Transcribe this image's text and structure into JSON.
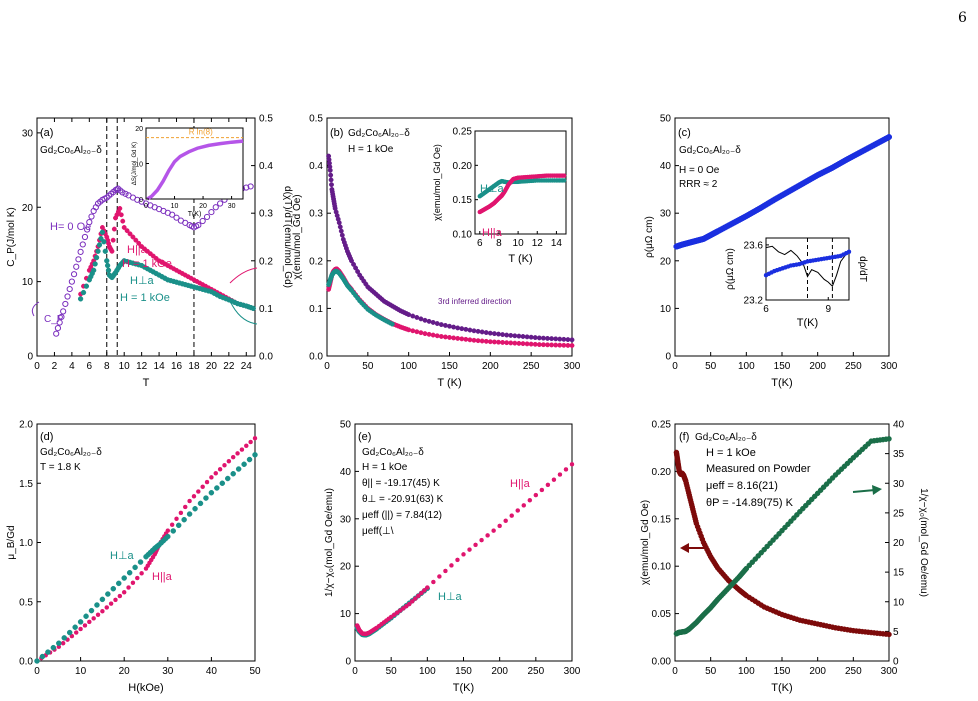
{
  "page_number": "6",
  "colors": {
    "pink": "#e0156e",
    "teal": "#1a9089",
    "purple": "#7b2fbe",
    "violet": "#b555e8",
    "darkpurple": "#641c89",
    "blue": "#1a2fe0",
    "darkred": "#7d0a0a",
    "darkgreen": "#1a6e48",
    "orange": "#f0a030"
  },
  "chart_data": [
    {
      "panel": "(a)",
      "type": "scatter",
      "annotations": [
        "Gd₂Co₆Al₂₀₋δ",
        "H= 0 Oe",
        "H||a",
        "H = 1 kOe",
        "H⊥a",
        "H = 1 kOe",
        "C_P"
      ],
      "xlabel": "T",
      "ylabel": "C_P(J/mol K)",
      "y2label": "d(χT)/dT(emu/mol_Gd)",
      "xlim": [
        0,
        25
      ],
      "ylim": [
        0,
        32
      ],
      "y2lim": [
        0,
        0.5
      ],
      "xticks": [
        "0",
        "2",
        "4",
        "6",
        "8",
        "10",
        "12",
        "14",
        "16",
        "18",
        "20",
        "22",
        "24"
      ],
      "yticks": [
        "0",
        "10",
        "20",
        "30"
      ],
      "y2ticks": [
        "0.0",
        "0.1",
        "0.2",
        "0.3",
        "0.4",
        "0.5"
      ],
      "dashed_lines_x": [
        8,
        9.2,
        18
      ],
      "series": [
        {
          "name": "H= 0 Oe",
          "axis": "left",
          "x": [
            2.2,
            2.6,
            3.0,
            3.5,
            4.0,
            4.5,
            5.0,
            5.5,
            6.0,
            6.5,
            7.0,
            7.5,
            8.0,
            8.5,
            9.0,
            9.3,
            9.8,
            10.5,
            11.5,
            12.5,
            13.5,
            14.5,
            15.5,
            16.5,
            17.5,
            18.0,
            18.5,
            19.5,
            20.5,
            21.5,
            22.5,
            23.5,
            24.5
          ],
          "y": [
            3,
            4.5,
            6,
            8,
            10,
            12,
            14,
            16,
            18,
            19.5,
            20.5,
            21,
            21.3,
            21.8,
            22.3,
            22.5,
            22,
            21.6,
            21,
            20.5,
            20,
            19.5,
            19,
            18.2,
            17.6,
            17.3,
            17.6,
            18.7,
            20,
            21,
            22,
            22.5,
            22.8
          ]
        },
        {
          "name": "H||a",
          "axis": "right",
          "x": [
            5,
            6,
            6.5,
            7,
            7.5,
            8,
            8.3,
            8.6,
            9,
            9.5,
            10,
            11,
            12,
            13,
            14,
            15,
            16,
            17,
            18,
            19,
            20,
            21,
            22,
            23,
            24,
            24.8
          ],
          "y": [
            0.13,
            0.18,
            0.2,
            0.23,
            0.27,
            0.25,
            0.23,
            0.22,
            0.29,
            0.31,
            0.27,
            0.25,
            0.23,
            0.215,
            0.2,
            0.19,
            0.18,
            0.17,
            0.16,
            0.15,
            0.14,
            0.13,
            0.12,
            0.11,
            0.105,
            0.1
          ]
        },
        {
          "name": "H⊥a",
          "axis": "right",
          "x": [
            5,
            6,
            6.5,
            7,
            7.5,
            8,
            8.3,
            8.6,
            9,
            9.5,
            10,
            11,
            12,
            13,
            14,
            15,
            16,
            17,
            18,
            19,
            20,
            21,
            22,
            23,
            24,
            24.8
          ],
          "y": [
            0.12,
            0.16,
            0.18,
            0.22,
            0.26,
            0.2,
            0.17,
            0.165,
            0.175,
            0.19,
            0.2,
            0.195,
            0.19,
            0.18,
            0.17,
            0.16,
            0.155,
            0.15,
            0.145,
            0.14,
            0.135,
            0.125,
            0.118,
            0.11,
            0.105,
            0.1
          ]
        }
      ],
      "inset": {
        "xlabel": "T(K)",
        "ylabel": "ΔS(J/mol_Gd K)",
        "label": "R ln(8)",
        "xlim": [
          0,
          34
        ],
        "ylim": [
          0,
          20
        ],
        "xticks": [
          "0",
          "10",
          "20",
          "30"
        ],
        "yticks": [
          "0",
          "10",
          "20"
        ],
        "rln8": 17.3,
        "x": [
          0.5,
          2,
          4,
          6,
          8,
          10,
          12,
          15,
          18,
          22,
          26,
          30,
          34
        ],
        "y": [
          0,
          0.8,
          2.5,
          5,
          8,
          10.5,
          12,
          13.3,
          14.3,
          15.1,
          15.6,
          16,
          16.3
        ]
      }
    },
    {
      "panel": "(b)",
      "type": "scatter",
      "annotations": [
        "Gd₂Co₆Al₂₀₋δ",
        "H = 1 kOe",
        "3rd inferred direction"
      ],
      "xlabel": "T (K)",
      "ylabel": "χ(emu/mol_Gd Oe)",
      "xlim": [
        0,
        300
      ],
      "ylim": [
        0,
        0.5
      ],
      "xticks": [
        "0",
        "50",
        "100",
        "150",
        "200",
        "250",
        "300"
      ],
      "yticks": [
        "0.0",
        "0.1",
        "0.2",
        "0.3",
        "0.4",
        "0.5"
      ],
      "series": [
        {
          "name": "3rd inferred direction",
          "x": [
            2,
            4,
            6,
            8,
            10,
            15,
            20,
            25,
            30,
            40,
            50,
            60,
            70,
            80,
            90,
            100,
            120,
            140,
            160,
            180,
            200,
            220,
            240,
            260,
            280,
            300
          ],
          "y": [
            0.42,
            0.39,
            0.35,
            0.33,
            0.31,
            0.28,
            0.245,
            0.22,
            0.2,
            0.17,
            0.145,
            0.13,
            0.115,
            0.105,
            0.095,
            0.087,
            0.075,
            0.066,
            0.059,
            0.053,
            0.048,
            0.044,
            0.041,
            0.038,
            0.036,
            0.034
          ]
        },
        {
          "name": "H||a",
          "x": [
            2,
            4,
            6,
            8,
            10,
            12,
            15,
            20,
            25,
            30,
            40,
            50,
            60,
            70,
            80,
            90,
            100,
            120,
            140,
            160,
            180,
            200,
            220,
            240,
            260,
            280,
            300
          ],
          "y": [
            0.14,
            0.155,
            0.17,
            0.178,
            0.182,
            0.183,
            0.178,
            0.165,
            0.15,
            0.14,
            0.118,
            0.1,
            0.087,
            0.077,
            0.068,
            0.061,
            0.055,
            0.047,
            0.041,
            0.037,
            0.033,
            0.03,
            0.028,
            0.026,
            0.024,
            0.023,
            0.022
          ]
        },
        {
          "name": "H⊥a",
          "x": [
            2,
            4,
            6,
            8,
            10,
            12,
            15,
            20,
            25,
            30,
            40,
            50,
            60,
            70,
            80
          ],
          "y": [
            0.15,
            0.16,
            0.17,
            0.175,
            0.178,
            0.178,
            0.174,
            0.162,
            0.148,
            0.138,
            0.116,
            0.098,
            0.086,
            0.076,
            0.067
          ]
        }
      ],
      "inset": {
        "xlabel": "T (K)",
        "ylabel": "χ(emu/mol_Gd Oe)",
        "xlim": [
          5.5,
          15
        ],
        "ylim": [
          0.1,
          0.25
        ],
        "xticks": [
          "6",
          "8",
          "10",
          "12",
          "14"
        ],
        "yticks": [
          "0.10",
          "0.15",
          "0.20",
          "0.25"
        ],
        "labels": [
          "H⊥a",
          "H||a"
        ],
        "series": [
          {
            "name": "H⊥a",
            "x": [
              6,
              6.5,
              7,
              7.5,
              8,
              8.3,
              8.6,
              9,
              9.5,
              10,
              11,
              12,
              13,
              14,
              14.8
            ],
            "y": [
              0.155,
              0.16,
              0.165,
              0.17,
              0.175,
              0.177,
              0.176,
              0.175,
              0.176,
              0.176,
              0.177,
              0.178,
              0.178,
              0.178,
              0.178
            ]
          },
          {
            "name": "H||a",
            "x": [
              6,
              6.5,
              7,
              7.5,
              8,
              8.3,
              8.6,
              9,
              9.5,
              10,
              11,
              12,
              13,
              14,
              14.8
            ],
            "y": [
              0.132,
              0.136,
              0.14,
              0.145,
              0.152,
              0.156,
              0.162,
              0.172,
              0.18,
              0.182,
              0.183,
              0.184,
              0.185,
              0.185,
              0.185
            ]
          }
        ]
      }
    },
    {
      "panel": "(c)",
      "type": "scatter",
      "annotations": [
        "Gd₂Co₆Al₂₀₋δ",
        "H = 0 Oe",
        "RRR ≈ 2"
      ],
      "xlabel": "T(K)",
      "ylabel": "ρ(μΩ cm)",
      "xlim": [
        0,
        300
      ],
      "ylim": [
        0,
        50
      ],
      "xticks": [
        "0",
        "50",
        "100",
        "150",
        "200",
        "250",
        "300"
      ],
      "yticks": [
        "0",
        "10",
        "20",
        "30",
        "40",
        "50"
      ],
      "series": [
        {
          "name": "ρ",
          "x": [
            2,
            10,
            20,
            30,
            40,
            50,
            60,
            80,
            100,
            120,
            140,
            160,
            180,
            200,
            220,
            240,
            260,
            280,
            300
          ],
          "y": [
            23,
            23.4,
            23.8,
            24.2,
            24.6,
            25.4,
            26.2,
            27.8,
            29.4,
            31.1,
            32.9,
            34.6,
            36.3,
            38,
            39.5,
            41.2,
            42.8,
            44.4,
            46
          ]
        }
      ],
      "inset": {
        "xlabel": "T(K)",
        "ylabel": "ρ(μΩ cm)",
        "y2label": "dρ/dT",
        "xlim": [
          6,
          10
        ],
        "ylim": [
          23.2,
          23.65
        ],
        "xticks": [
          "6",
          "9"
        ],
        "yticks": [
          "23.2",
          "23.6"
        ],
        "dashed_lines_x": [
          8,
          9.2
        ],
        "rho": {
          "x": [
            6,
            6.4,
            6.8,
            7.2,
            7.6,
            8,
            8.4,
            8.8,
            9.2,
            9.6,
            10
          ],
          "y": [
            23.38,
            23.41,
            23.43,
            23.45,
            23.46,
            23.48,
            23.49,
            23.5,
            23.51,
            23.52,
            23.55
          ]
        },
        "drho": {
          "x": [
            6,
            6.3,
            6.6,
            6.9,
            7.2,
            7.5,
            7.8,
            8,
            8.2,
            8.5,
            8.8,
            9.0,
            9.2,
            9.4,
            9.6,
            9.8,
            10
          ],
          "y": [
            23.58,
            23.59,
            23.55,
            23.53,
            23.56,
            23.52,
            23.46,
            23.37,
            23.42,
            23.4,
            23.35,
            23.33,
            23.3,
            23.38,
            23.48,
            23.52,
            23.56
          ]
        }
      }
    },
    {
      "panel": "(d)",
      "type": "scatter",
      "annotations": [
        "Gd₂Co₆Al₂₀₋δ",
        "T = 1.8 K",
        "H⊥a",
        "H||a"
      ],
      "xlabel": "H(kOe)",
      "ylabel": "μ_B/Gd",
      "xlim": [
        0,
        50
      ],
      "ylim": [
        0,
        2.0
      ],
      "xticks": [
        "0",
        "10",
        "20",
        "30",
        "40",
        "50"
      ],
      "yticks": [
        "0.0",
        "0.5",
        "1.0",
        "1.5",
        "2.0"
      ],
      "series": [
        {
          "name": "H⊥a",
          "x": [
            0,
            5,
            10,
            15,
            20,
            25,
            27,
            28,
            30,
            35,
            40,
            45,
            50
          ],
          "y": [
            0,
            0.15,
            0.33,
            0.52,
            0.7,
            0.88,
            0.95,
            0.98,
            1.05,
            1.24,
            1.42,
            1.58,
            1.74
          ]
        },
        {
          "name": "H||a",
          "x": [
            0,
            5,
            10,
            15,
            20,
            25,
            27,
            28,
            30,
            35,
            40,
            45,
            50
          ],
          "y": [
            0,
            0.12,
            0.27,
            0.42,
            0.58,
            0.78,
            0.9,
            0.98,
            1.1,
            1.35,
            1.55,
            1.72,
            1.88
          ]
        }
      ]
    },
    {
      "panel": "(e)",
      "type": "scatter",
      "annotations": [
        "Gd₂Co₆Al₂₀₋δ",
        "H = 1 kOe",
        "θ|| = -19.17(45) K",
        "θ⊥ = -20.91(63) K",
        "μeff (||) = 7.84(12)",
        "μeff(⊥\\",
        "H||a",
        "H⊥a"
      ],
      "xlabel": "T(K)",
      "ylabel": "1/χ−χ₀(mol_Gd Oe/emu)",
      "xlim": [
        0,
        300
      ],
      "ylim": [
        0,
        50
      ],
      "xticks": [
        "0",
        "50",
        "100",
        "150",
        "200",
        "250",
        "300"
      ],
      "yticks": [
        "0",
        "10",
        "20",
        "30",
        "40",
        "50"
      ],
      "series": [
        {
          "name": "H||a",
          "x": [
            3,
            6,
            10,
            15,
            20,
            30,
            50,
            75,
            100,
            150,
            200,
            250,
            300
          ],
          "y": [
            7.5,
            6.5,
            5.8,
            5.7,
            6.0,
            7.0,
            9.3,
            12.0,
            15.5,
            22.5,
            28.5,
            35,
            41.5
          ]
        },
        {
          "name": "H⊥a",
          "x": [
            3,
            6,
            10,
            15,
            20,
            30,
            50,
            75,
            100
          ],
          "y": [
            7,
            6.2,
            5.6,
            5.5,
            5.8,
            6.8,
            9.1,
            12.2,
            15.3
          ]
        }
      ]
    },
    {
      "panel": "(f)",
      "type": "scatter",
      "annotations": [
        "Gd₂Co₆Al₂₀₋δ",
        "H = 1 kOe",
        "Measured on Powder",
        "μeff = 8.16(21)",
        "θP = -14.89(75) K"
      ],
      "xlabel": "T(K)",
      "ylabel": "χ(emu/mol_Gd Oe)",
      "y2label": "1/χ−χ₀(mol_Gd Oe/emu)",
      "xlim": [
        0,
        300
      ],
      "ylim": [
        0,
        0.25
      ],
      "y2lim": [
        0,
        40
      ],
      "xticks": [
        "0",
        "50",
        "100",
        "150",
        "200",
        "250",
        "300"
      ],
      "yticks": [
        "0.00",
        "0.05",
        "0.10",
        "0.15",
        "0.20",
        "0.25"
      ],
      "y2ticks": [
        "0",
        "5",
        "10",
        "15",
        "20",
        "25",
        "30",
        "35",
        "40"
      ],
      "series": [
        {
          "name": "χ",
          "axis": "left",
          "x": [
            2,
            4,
            6,
            8,
            10,
            12,
            15,
            20,
            25,
            30,
            40,
            50,
            60,
            75,
            90,
            100,
            125,
            150,
            175,
            200,
            225,
            250,
            275,
            300
          ],
          "y": [
            0.22,
            0.21,
            0.2,
            0.197,
            0.198,
            0.196,
            0.19,
            0.175,
            0.16,
            0.145,
            0.125,
            0.11,
            0.098,
            0.085,
            0.075,
            0.069,
            0.057,
            0.049,
            0.043,
            0.039,
            0.035,
            0.032,
            0.03,
            0.028
          ]
        },
        {
          "name": "1/χ",
          "axis": "right",
          "x": [
            2,
            5,
            10,
            15,
            20,
            30,
            40,
            50,
            60,
            75,
            90,
            100,
            125,
            150,
            175,
            200,
            225,
            250,
            275,
            300
          ],
          "y": [
            4.6,
            4.8,
            4.9,
            5.0,
            5.4,
            6.5,
            7.8,
            9.0,
            10.4,
            12.3,
            14.2,
            15.6,
            18.8,
            22.0,
            25.2,
            28.3,
            31.4,
            34.3,
            37.1,
            37.5
          ]
        }
      ]
    }
  ]
}
